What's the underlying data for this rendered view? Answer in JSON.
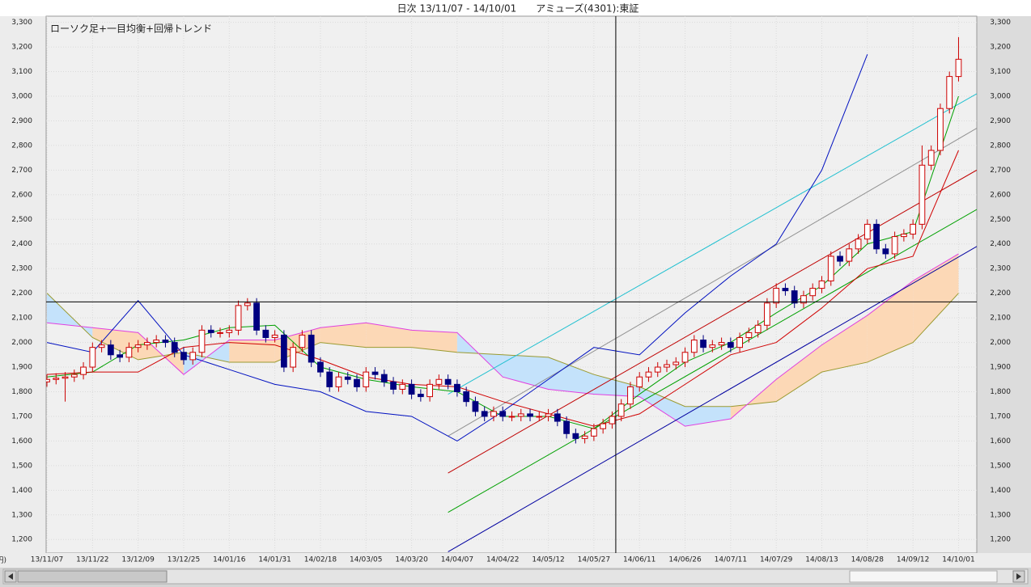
{
  "chart_data": {
    "type": "candlestick",
    "title": "日次 13/11/07 - 14/10/01　　アミューズ(4301):東証",
    "subtitle": "ローソク足+一目均衡+回帰トレンド",
    "unit_label": "(円)",
    "xlim": [
      0,
      102
    ],
    "ylim": [
      1145,
      3325
    ],
    "yticks": [
      {
        "value": 1200,
        "label": "1,200"
      },
      {
        "value": 1300,
        "label": "1,300"
      },
      {
        "value": 1400,
        "label": "1,400"
      },
      {
        "value": 1500,
        "label": "1,500"
      },
      {
        "value": 1600,
        "label": "1,600"
      },
      {
        "value": 1700,
        "label": "1,700"
      },
      {
        "value": 1800,
        "label": "1,800"
      },
      {
        "value": 1900,
        "label": "1,900"
      },
      {
        "value": 2000,
        "label": "2,000"
      },
      {
        "value": 2100,
        "label": "2,100"
      },
      {
        "value": 2200,
        "label": "2,200"
      },
      {
        "value": 2300,
        "label": "2,300"
      },
      {
        "value": 2400,
        "label": "2,400"
      },
      {
        "value": 2500,
        "label": "2,500"
      },
      {
        "value": 2600,
        "label": "2,600"
      },
      {
        "value": 2700,
        "label": "2,700"
      },
      {
        "value": 2800,
        "label": "2,800"
      },
      {
        "value": 2900,
        "label": "2,900"
      },
      {
        "value": 3000,
        "label": "3,000"
      },
      {
        "value": 3100,
        "label": "3,100"
      },
      {
        "value": 3200,
        "label": "3,200"
      },
      {
        "value": 3300,
        "label": "3,300"
      }
    ],
    "xticks": [
      {
        "value": 0,
        "label": "13/11/07"
      },
      {
        "value": 5,
        "label": "13/11/22"
      },
      {
        "value": 10,
        "label": "13/12/09"
      },
      {
        "value": 15,
        "label": "13/12/25"
      },
      {
        "value": 20,
        "label": "14/01/16"
      },
      {
        "value": 25,
        "label": "14/01/31"
      },
      {
        "value": 30,
        "label": "14/02/18"
      },
      {
        "value": 35,
        "label": "14/03/05"
      },
      {
        "value": 40,
        "label": "14/03/20"
      },
      {
        "value": 45,
        "label": "14/04/07"
      },
      {
        "value": 50,
        "label": "14/04/22"
      },
      {
        "value": 55,
        "label": "14/05/12"
      },
      {
        "value": 60,
        "label": "14/05/27"
      },
      {
        "value": 65,
        "label": "14/06/11"
      },
      {
        "value": 70,
        "label": "14/06/26"
      },
      {
        "value": 75,
        "label": "14/07/11"
      },
      {
        "value": 80,
        "label": "14/07/29"
      },
      {
        "value": 85,
        "label": "14/08/13"
      },
      {
        "value": 90,
        "label": "14/08/28"
      },
      {
        "value": 95,
        "label": "14/09/12"
      },
      {
        "value": 100,
        "label": "14/10/01"
      }
    ],
    "up_color": "#cc0000",
    "down_color": "#000080",
    "open": [
      1840,
      1850,
      1855,
      1860,
      1870,
      1900,
      1980,
      1990,
      1950,
      1940,
      1980,
      1990,
      2000,
      2010,
      2000,
      1960,
      1930,
      1960,
      2050,
      2040,
      2040,
      2050,
      2150,
      2160,
      2050,
      2020,
      2030,
      1900,
      1980,
      2030,
      1920,
      1880,
      1820,
      1860,
      1850,
      1820,
      1880,
      1870,
      1840,
      1810,
      1830,
      1790,
      1780,
      1830,
      1850,
      1830,
      1800,
      1760,
      1720,
      1700,
      1720,
      1700,
      1700,
      1710,
      1700,
      1700,
      1710,
      1680,
      1630,
      1610,
      1620,
      1650,
      1670,
      1700,
      1750,
      1820,
      1860,
      1880,
      1900,
      1910,
      1920,
      1960,
      2010,
      1980,
      1990,
      2000,
      1980,
      2020,
      2040,
      2070,
      2160,
      2220,
      2210,
      2160,
      2190,
      2220,
      2250,
      2350,
      2330,
      2380,
      2420,
      2480,
      2380,
      2360,
      2430,
      2440,
      2480,
      2720,
      2780,
      2950,
      3080
    ],
    "high": [
      1870,
      1875,
      1880,
      1890,
      1920,
      2000,
      2010,
      2010,
      1970,
      2000,
      2010,
      2020,
      2030,
      2030,
      2020,
      1980,
      1980,
      2070,
      2070,
      2060,
      2070,
      2170,
      2180,
      2180,
      2070,
      2050,
      2050,
      2000,
      2050,
      2050,
      1940,
      1900,
      1880,
      1880,
      1870,
      1900,
      1900,
      1890,
      1860,
      1850,
      1850,
      1810,
      1850,
      1870,
      1870,
      1850,
      1820,
      1780,
      1740,
      1740,
      1740,
      1720,
      1730,
      1730,
      1720,
      1730,
      1730,
      1700,
      1650,
      1640,
      1670,
      1690,
      1720,
      1770,
      1840,
      1880,
      1900,
      1920,
      1930,
      1940,
      1980,
      2030,
      2030,
      2010,
      2020,
      2020,
      2040,
      2060,
      2090,
      2180,
      2240,
      2240,
      2230,
      2210,
      2240,
      2270,
      2370,
      2370,
      2400,
      2440,
      2500,
      2500,
      2400,
      2450,
      2460,
      2500,
      2800,
      2800,
      2970,
      3100,
      3240
    ],
    "low": [
      1820,
      1830,
      1760,
      1840,
      1850,
      1880,
      1960,
      1930,
      1920,
      1920,
      1960,
      1970,
      1980,
      1980,
      1940,
      1910,
      1910,
      1940,
      2020,
      2020,
      2020,
      2030,
      2130,
      2030,
      2000,
      2000,
      1880,
      1880,
      1960,
      1900,
      1860,
      1800,
      1800,
      1830,
      1800,
      1800,
      1850,
      1820,
      1790,
      1790,
      1770,
      1760,
      1760,
      1810,
      1810,
      1780,
      1740,
      1700,
      1680,
      1680,
      1680,
      1680,
      1680,
      1680,
      1680,
      1680,
      1660,
      1610,
      1590,
      1590,
      1600,
      1630,
      1650,
      1680,
      1730,
      1800,
      1840,
      1860,
      1880,
      1890,
      1900,
      1940,
      1960,
      1960,
      1970,
      1960,
      1960,
      2000,
      2020,
      2050,
      2140,
      2190,
      2140,
      2140,
      2170,
      2200,
      2230,
      2310,
      2310,
      2360,
      2400,
      2360,
      2340,
      2340,
      2410,
      2420,
      2460,
      2700,
      2760,
      2930,
      3060
    ],
    "close": [
      1850,
      1855,
      1860,
      1870,
      1900,
      1980,
      1990,
      1950,
      1940,
      1980,
      1990,
      2000,
      2010,
      2000,
      1960,
      1930,
      1960,
      2050,
      2040,
      2040,
      2050,
      2150,
      2160,
      2050,
      2020,
      2030,
      1900,
      1980,
      2030,
      1920,
      1880,
      1820,
      1860,
      1850,
      1820,
      1880,
      1870,
      1840,
      1810,
      1830,
      1790,
      1780,
      1830,
      1850,
      1830,
      1800,
      1760,
      1720,
      1700,
      1720,
      1700,
      1700,
      1710,
      1700,
      1700,
      1710,
      1680,
      1630,
      1610,
      1620,
      1650,
      1670,
      1700,
      1750,
      1820,
      1860,
      1880,
      1900,
      1910,
      1920,
      1960,
      2010,
      1980,
      1990,
      2000,
      1980,
      2020,
      2040,
      2070,
      2160,
      2220,
      2210,
      2160,
      2190,
      2220,
      2250,
      2350,
      2330,
      2380,
      2420,
      2480,
      2380,
      2360,
      2430,
      2440,
      2480,
      2720,
      2780,
      2950,
      3080,
      3150
    ],
    "line_x": [
      0,
      5,
      10,
      15,
      20,
      25,
      30,
      35,
      40,
      45,
      50,
      55,
      60,
      65,
      70,
      75,
      80,
      85,
      90,
      95,
      100
    ],
    "cloud": {
      "colors": [
        "#c4e2fb",
        "#fcd8b6"
      ],
      "a": {
        "color": "#9a9a30",
        "values": [
          2200,
          2020,
          1930,
          1960,
          1920,
          1920,
          2000,
          1980,
          1980,
          1960,
          1950,
          1940,
          1870,
          1820,
          1740,
          1740,
          1760,
          1880,
          1920,
          2000,
          2200
        ]
      },
      "b": {
        "color": "#e040e0",
        "values": [
          2080,
          2060,
          2040,
          1870,
          2010,
          2010,
          2060,
          2080,
          2050,
          2040,
          1860,
          1810,
          1790,
          1780,
          1660,
          1690,
          1850,
          1990,
          2110,
          2250,
          2360
        ]
      }
    },
    "lines": [
      {
        "color": "#00a000",
        "values": [
          1860,
          1880,
          1990,
          2010,
          2060,
          2070,
          1900,
          1850,
          1820,
          1800,
          1700,
          1700,
          1650,
          1790,
          1920,
          2000,
          2120,
          2230,
          2400,
          2450,
          3000
        ]
      },
      {
        "color": "#d00000",
        "values": [
          1870,
          1880,
          1880,
          1980,
          2000,
          1990,
          1930,
          1860,
          1830,
          1820,
          1760,
          1710,
          1660,
          1710,
          1830,
          1950,
          2000,
          2140,
          2300,
          2350,
          2780
        ]
      },
      {
        "color": "#0010c0",
        "values": [
          2000,
          1960,
          2170,
          1950,
          1890,
          1830,
          1800,
          1720,
          1700,
          1600,
          1720,
          1850,
          1980,
          1950,
          2120,
          2270,
          2400,
          2700,
          3170,
          null,
          null
        ]
      }
    ],
    "trend_x": [
      44,
      102
    ],
    "trends": [
      {
        "color": "#20c0d0",
        "values": [
          1790,
          3010
        ]
      },
      {
        "color": "#909090",
        "values": [
          1620,
          2870
        ]
      },
      {
        "color": "#c00000",
        "values": [
          1470,
          2700
        ]
      },
      {
        "color": "#00a000",
        "values": [
          1310,
          2540
        ]
      },
      {
        "color": "#0000a0",
        "values": [
          1150,
          2390
        ]
      }
    ],
    "crosshair": {
      "x": 62.4,
      "y": 2165
    }
  }
}
